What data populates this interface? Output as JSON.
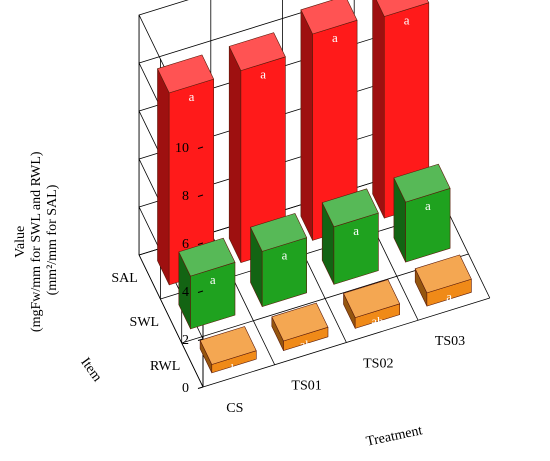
{
  "chart_data": {
    "type": "bar3d",
    "zlabel_lines": [
      "Value",
      "(mgFw/mm for SWL and RWL)",
      "(mm²/mm for SAL)"
    ],
    "xlabel": "Treatment",
    "ylabel": "Item",
    "zlim": [
      0,
      10
    ],
    "zticks": [
      0,
      2,
      4,
      6,
      8,
      10
    ],
    "grid": true,
    "treatments": [
      "CS",
      "TS01",
      "TS02",
      "TS03"
    ],
    "items": [
      "SAL",
      "SWL",
      "RWL"
    ],
    "series": [
      {
        "item": "SAL",
        "color": "#ff1a1a",
        "values": [
          8.0,
          8.0,
          8.6,
          8.4
        ],
        "labels": [
          "a",
          "a",
          "a",
          "a"
        ]
      },
      {
        "item": "SWL",
        "color": "#1fa21f",
        "values": [
          2.2,
          2.3,
          2.4,
          2.5
        ],
        "labels": [
          "a",
          "a",
          "a",
          "a"
        ]
      },
      {
        "item": "RWL",
        "color": "#f08a18",
        "values": [
          0.35,
          0.4,
          0.45,
          0.55
        ],
        "labels": [
          "b",
          "ab",
          "ab",
          "a"
        ]
      }
    ]
  }
}
